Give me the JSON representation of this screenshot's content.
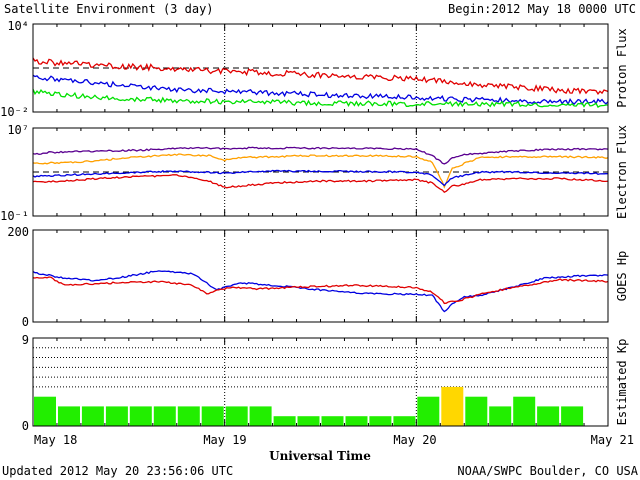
{
  "header": {
    "title": "Satellite Environment (3 day)",
    "begin_label": "Begin:",
    "begin_value": "2012 May 18 0000 UTC"
  },
  "footer": {
    "updated": "Updated 2012 May 20 23:56:06 UTC",
    "credit": "NOAA/SWPC Boulder, CO USA"
  },
  "x_axis": {
    "title": "Universal Time",
    "days": [
      "May 18",
      "May 19",
      "May 20",
      "May 21"
    ],
    "range_hours": [
      0,
      72
    ]
  },
  "colors": {
    "red": "#e00000",
    "blue": "#0000e0",
    "green": "#00e000",
    "purple": "#5a0090",
    "orange": "#ffa000",
    "kp_normal": "#22ee00",
    "kp_elevated": "#ffd700",
    "border": "#000000",
    "background": "#ffffff"
  },
  "chart_data": [
    {
      "type": "line",
      "ylabel": "Proton Flux",
      "yscale": "log",
      "ylim": [
        0.01,
        10000
      ],
      "ytick_labels": [
        "10⁴",
        "10⁻²"
      ],
      "threshold_line": 10,
      "series": [
        {
          "color": "#e00000",
          "x": [
            0,
            6,
            12,
            18,
            24,
            30,
            36,
            42,
            48,
            54,
            60,
            66,
            72
          ],
          "y": [
            30,
            18,
            13,
            9,
            6,
            4.5,
            3.5,
            2.6,
            1.8,
            0.9,
            0.5,
            0.3,
            0.25
          ]
        },
        {
          "color": "#0000e0",
          "x": [
            0,
            6,
            12,
            18,
            24,
            30,
            36,
            42,
            48,
            54,
            60,
            66,
            72
          ],
          "y": [
            2.5,
            1.2,
            0.6,
            0.35,
            0.25,
            0.2,
            0.15,
            0.12,
            0.1,
            0.07,
            0.06,
            0.05,
            0.05
          ]
        },
        {
          "color": "#00e000",
          "x": [
            0,
            6,
            12,
            18,
            24,
            30,
            36,
            42,
            48,
            54,
            60,
            66,
            72
          ],
          "y": [
            0.25,
            0.12,
            0.08,
            0.06,
            0.05,
            0.045,
            0.04,
            0.04,
            0.035,
            0.035,
            0.035,
            0.03,
            0.03
          ]
        }
      ]
    },
    {
      "type": "line",
      "ylabel": "Electron Flux",
      "yscale": "log",
      "ylim": [
        0.1,
        10000000
      ],
      "ytick_labels": [
        "10⁷",
        "10⁻¹"
      ],
      "threshold_line": 1000,
      "series": [
        {
          "color": "#5a0090",
          "x": [
            0,
            2,
            8,
            14,
            18,
            23,
            24,
            27,
            32,
            40,
            48,
            50,
            51.5,
            52.5,
            54,
            56,
            60,
            66,
            72
          ],
          "y": [
            40000,
            60000,
            80000,
            100000,
            150000,
            150000,
            120000,
            150000,
            150000,
            150000,
            120000,
            30000,
            5000,
            20000,
            40000,
            50000,
            80000,
            120000,
            120000
          ]
        },
        {
          "color": "#ffa000",
          "x": [
            0,
            6,
            12,
            18,
            22,
            24,
            26,
            34,
            42,
            48,
            50,
            51.5,
            52.5,
            54,
            56,
            60,
            66,
            72
          ],
          "y": [
            6000,
            8000,
            20000,
            40000,
            30000,
            12000,
            20000,
            30000,
            30000,
            25000,
            8000,
            50,
            2000,
            6000,
            20000,
            25000,
            25000,
            20000
          ]
        },
        {
          "color": "#0000e0",
          "x": [
            0,
            6,
            12,
            18,
            24,
            30,
            36,
            42,
            48,
            50,
            51.5,
            52.5,
            54,
            56,
            60,
            66,
            72
          ],
          "y": [
            400,
            600,
            900,
            1200,
            800,
            1200,
            1200,
            1100,
            1000,
            500,
            60,
            300,
            500,
            1000,
            1000,
            800,
            700
          ]
        },
        {
          "color": "#e00000",
          "x": [
            0,
            4,
            8,
            14,
            18,
            22,
            24,
            30,
            36,
            42,
            48,
            50,
            51.5,
            52.5,
            54,
            56,
            60,
            66,
            72
          ],
          "y": [
            120,
            150,
            250,
            400,
            500,
            150,
            40,
            100,
            150,
            150,
            200,
            100,
            15,
            50,
            80,
            200,
            250,
            250,
            150
          ]
        }
      ]
    },
    {
      "type": "line",
      "ylabel": "GOES Hp",
      "ylim": [
        0,
        200
      ],
      "ytick_labels": [
        "200",
        "0"
      ],
      "series": [
        {
          "color": "#0000e0",
          "x": [
            0,
            4,
            8,
            12,
            16,
            20,
            23,
            26,
            30,
            36,
            42,
            48,
            50,
            51.5,
            52.5,
            54,
            56,
            60,
            64,
            68,
            72
          ],
          "y": [
            108,
            95,
            90,
            100,
            112,
            105,
            70,
            85,
            80,
            70,
            62,
            60,
            58,
            22,
            40,
            55,
            58,
            75,
            95,
            100,
            102
          ]
        },
        {
          "color": "#e00000",
          "x": [
            0,
            2,
            4,
            10,
            16,
            20,
            22,
            23,
            25,
            28,
            32,
            40,
            48,
            50,
            51.5,
            53,
            56,
            60,
            66,
            72
          ],
          "y": [
            95,
            98,
            80,
            85,
            88,
            80,
            60,
            70,
            75,
            72,
            75,
            80,
            75,
            65,
            42,
            45,
            60,
            75,
            92,
            88
          ]
        }
      ]
    },
    {
      "type": "bar",
      "ylabel": "Estimated Kp",
      "ylim": [
        0,
        9
      ],
      "ytick_labels": [
        "9",
        "0"
      ],
      "gridlines": [
        4,
        5,
        6,
        7,
        8
      ],
      "interval_hours": 3,
      "values": [
        3,
        2,
        2,
        2,
        2,
        2,
        2,
        2,
        2,
        2,
        1,
        1,
        1,
        1,
        1,
        1,
        3,
        4,
        3,
        2,
        3,
        2,
        2,
        0
      ],
      "highlight_threshold": 4
    }
  ]
}
